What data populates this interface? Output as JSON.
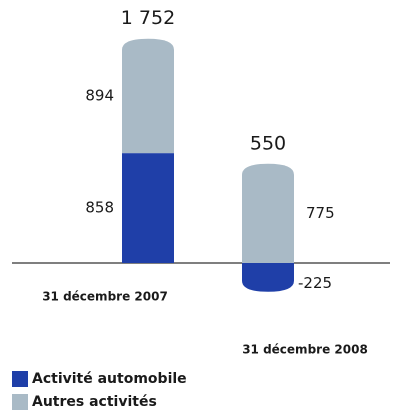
{
  "chart_data": {
    "type": "stacked_bar",
    "categories": [
      "31 décembre 2007",
      "31 décembre 2008"
    ],
    "series": [
      {
        "name": "Activité automobile",
        "color": "#1f3fa8",
        "values": [
          858,
          -225
        ]
      },
      {
        "name": "Autres activités",
        "color": "#a9bac6",
        "values": [
          894,
          775
        ]
      }
    ],
    "total_labels": [
      "1 752",
      "550"
    ]
  }
}
